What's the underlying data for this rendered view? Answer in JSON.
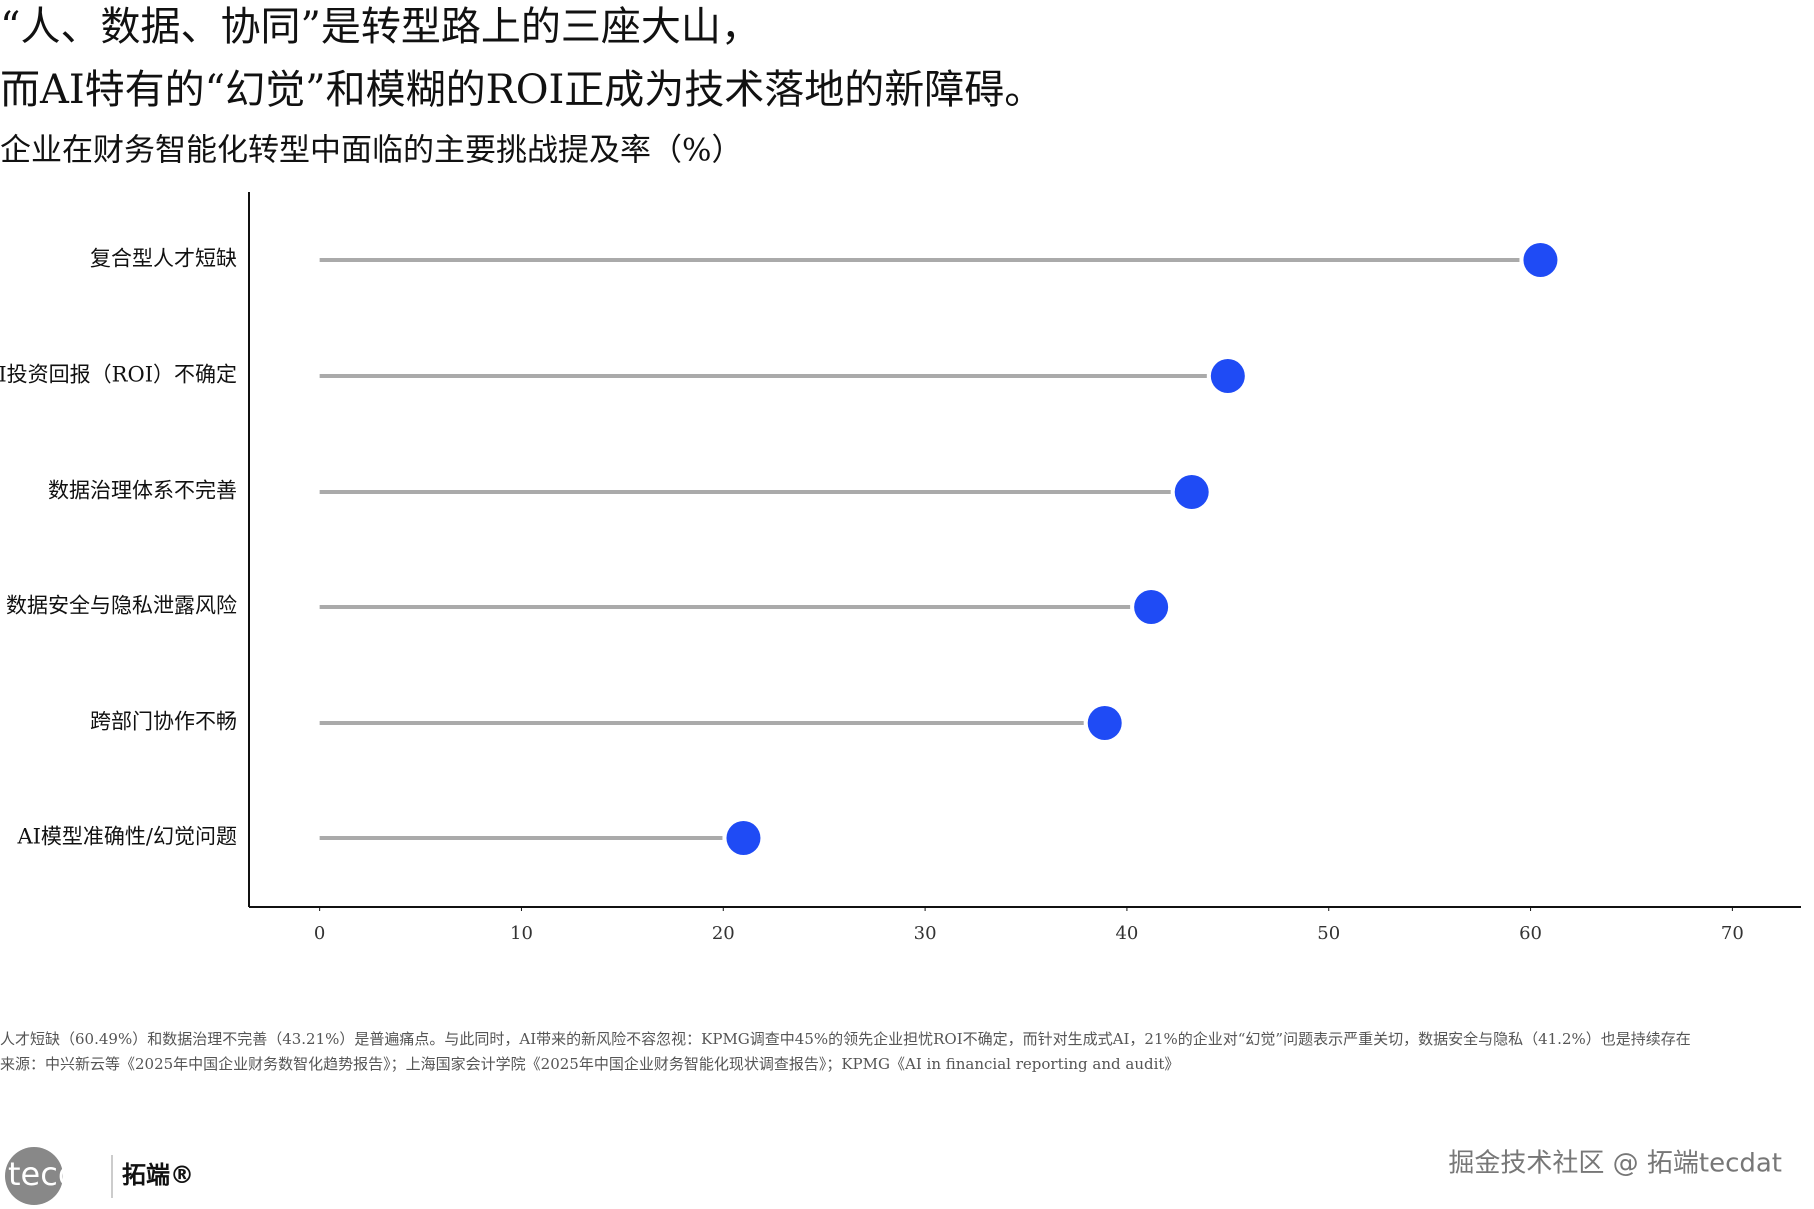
{
  "chart_data": {
    "type": "lollipop",
    "title_lines": [
      "“人、数据、协同”是转型路上的三座大山，",
      "而AI特有的“幻觉”和模糊的ROI正成为技术落地的新障碍。"
    ],
    "subtitle": "企业在财务智能化转型中面临的主要挑战提及率（%）",
    "categories": [
      "复合型人才短缺",
      "AI投资回报（ROI）不确定",
      "数据治理体系不完善",
      "数据安全与隐私泄露风险",
      "跨部门协作不畅",
      "AI模型准确性/幻觉问题"
    ],
    "values": [
      60.49,
      45,
      43.21,
      41.2,
      38.9,
      21
    ],
    "color": "#1f4bf5",
    "stem_color": "#aaaaaa",
    "xlim": [
      -3.5,
      73.4
    ],
    "xticks": [
      0,
      10,
      20,
      30,
      40,
      50,
      60,
      70
    ],
    "grid": false
  },
  "footnotes": [
    "人才短缺（60.49%）和数据治理不完善（43.21%）是普遍痛点。与此同时，AI带来的新风险不容忽视：KPMG调查中45%的领先企业担忧ROI不确定，而针对生成式AI，21%的企业对“幻觉”问题表示严重关切，数据安全与隐私（41.2%）也是持续存在",
    "来源：中兴新云等《2025年中国企业财务数智化趋势报告》；上海国家会计学院《2025年中国企业财务智能化现状调查报告》；KPMG《AI in financial reporting and audit》"
  ],
  "logo": {
    "brand": "tecdat",
    "name": "拓端®"
  },
  "watermark": "掘金技术社区 @ 拓端tecdat"
}
